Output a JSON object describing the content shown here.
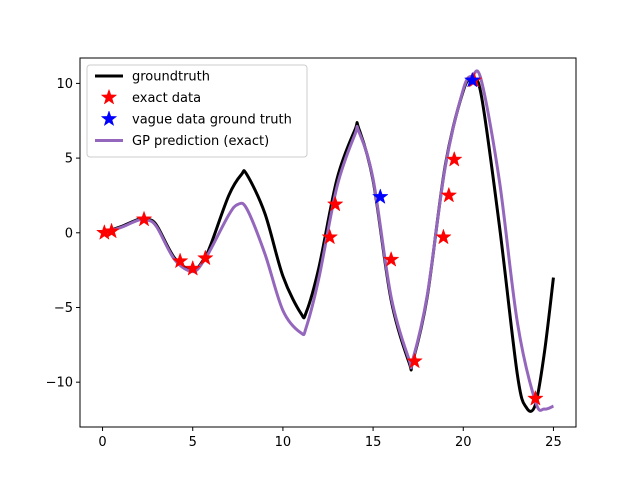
{
  "chart_data": {
    "type": "line",
    "title": "",
    "xlabel": "",
    "ylabel": "",
    "xlim": [
      -1.25,
      26.25
    ],
    "ylim": [
      -13,
      11.7
    ],
    "xticks": [
      0,
      5,
      10,
      15,
      20,
      25
    ],
    "yticks": [
      -10,
      -5,
      0,
      5,
      10
    ],
    "grid": false,
    "legend_position": "top-left",
    "colors": {
      "groundtruth": "#000000",
      "exact_data": "#ff0000",
      "vague_data": "#0000ff",
      "gp_prediction": "#9467bd"
    },
    "legend": [
      {
        "label": "groundtruth",
        "kind": "line",
        "color": "#000000"
      },
      {
        "label": "exact data",
        "kind": "star",
        "color": "#ff0000"
      },
      {
        "label": "vague data ground truth",
        "kind": "star",
        "color": "#0000ff"
      },
      {
        "label": "GP prediction (exact)",
        "kind": "line",
        "color": "#9467bd"
      }
    ],
    "series": [
      {
        "name": "groundtruth",
        "kind": "line",
        "x": [
          0,
          1,
          2,
          2.5,
          3,
          4,
          5,
          5.6,
          6,
          7,
          7.7,
          8,
          9,
          10,
          11,
          11.3,
          12,
          13,
          14,
          14.2,
          15,
          16,
          17,
          17.2,
          18,
          19,
          20,
          20.5,
          21,
          22,
          23,
          23.5,
          24,
          24.5,
          25
        ],
        "y": [
          0,
          0.4,
          0.9,
          0.9,
          0.5,
          -1.7,
          -2.5,
          -1.8,
          -0.8,
          2.5,
          3.9,
          3.9,
          1.3,
          -2.9,
          -5.4,
          -5.3,
          -2.3,
          3.6,
          6.9,
          7.0,
          3.5,
          -4.5,
          -8.7,
          -8.6,
          -4.3,
          4.5,
          9.5,
          10.2,
          9.2,
          0.5,
          -9.5,
          -11.7,
          -11.5,
          -8.0,
          -3.0
        ]
      },
      {
        "name": "GP prediction (exact)",
        "kind": "line",
        "x": [
          0,
          1,
          2,
          2.5,
          3,
          4,
          5,
          5.6,
          6,
          7,
          7.5,
          8,
          9,
          10,
          11,
          11.3,
          12,
          13,
          14,
          14.2,
          15,
          16,
          17,
          17.2,
          18,
          19,
          20,
          20.5,
          21,
          22,
          23,
          24,
          24.5,
          25
        ],
        "y": [
          0,
          0.35,
          0.85,
          0.85,
          0.4,
          -1.8,
          -2.6,
          -1.9,
          -1.1,
          1.2,
          1.9,
          1.6,
          -1.4,
          -5.2,
          -6.7,
          -6.3,
          -3.0,
          3.1,
          6.6,
          6.8,
          3.6,
          -4.3,
          -8.5,
          -8.5,
          -4.2,
          4.4,
          9.6,
          10.5,
          10.2,
          3.5,
          -6.0,
          -11.3,
          -11.8,
          -11.6
        ]
      },
      {
        "name": "exact data",
        "kind": "scatter",
        "x": [
          0.1,
          0.5,
          2.3,
          4.3,
          5.0,
          5.7,
          12.6,
          12.9,
          16.0,
          17.3,
          18.9,
          19.2,
          19.5,
          20.6,
          24.0
        ],
        "y": [
          0,
          0.1,
          0.9,
          -1.9,
          -2.4,
          -1.7,
          -0.3,
          1.9,
          -1.8,
          -8.6,
          -0.3,
          2.5,
          4.9,
          10.2,
          -11.1
        ]
      },
      {
        "name": "vague data ground truth",
        "kind": "scatter",
        "x": [
          15.4,
          20.5
        ],
        "y": [
          2.4,
          10.2
        ]
      }
    ]
  }
}
